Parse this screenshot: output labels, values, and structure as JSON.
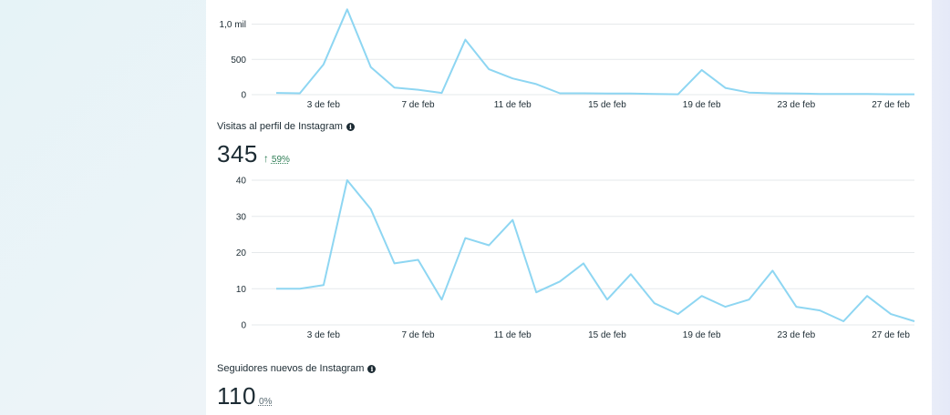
{
  "metrics": [
    {
      "label": "",
      "value": "",
      "chart_data": {
        "type": "line",
        "x": [
          1,
          2,
          3,
          4,
          5,
          6,
          7,
          8,
          9,
          10,
          11,
          12,
          13,
          14,
          15,
          16,
          17,
          18,
          19,
          20,
          21,
          22,
          23,
          24,
          25,
          26,
          27,
          28
        ],
        "values": [
          25,
          20,
          430,
          1210,
          390,
          100,
          70,
          25,
          780,
          360,
          230,
          150,
          20,
          20,
          15,
          15,
          10,
          5,
          350,
          95,
          30,
          20,
          15,
          10,
          10,
          10,
          5,
          5
        ],
        "ylim": [
          0,
          1250
        ],
        "yticks": [
          0,
          500,
          1000
        ],
        "ytick_labels": [
          "0",
          "500",
          "1,0 mil"
        ],
        "xticks": [
          3,
          7,
          11,
          15,
          19,
          23,
          27
        ],
        "xtick_labels": [
          "3 de feb",
          "7 de feb",
          "11 de feb",
          "15 de feb",
          "19 de feb",
          "23 de feb",
          "27 de feb"
        ],
        "grid": true,
        "line_color": "#8ed6f2"
      }
    },
    {
      "label": "Visitas al perfil de Instagram",
      "value": "345",
      "change": "59%",
      "trend_icon": "arrow-up-icon",
      "trend_color": "#2e7d55",
      "chart_data": {
        "type": "line",
        "x": [
          1,
          2,
          3,
          4,
          5,
          6,
          7,
          8,
          9,
          10,
          11,
          12,
          13,
          14,
          15,
          16,
          17,
          18,
          19,
          20,
          21,
          22,
          23,
          24,
          25,
          26,
          27,
          28
        ],
        "values": [
          10,
          10,
          11,
          40,
          32,
          17,
          18,
          7,
          24,
          22,
          29,
          9,
          12,
          17,
          7,
          14,
          6,
          3,
          8,
          5,
          7,
          15,
          5,
          4,
          1,
          8,
          3,
          1
        ],
        "ylim": [
          0,
          40
        ],
        "yticks": [
          0,
          10,
          20,
          30,
          40
        ],
        "ytick_labels": [
          "0",
          "10",
          "20",
          "30",
          "40"
        ],
        "xticks": [
          3,
          7,
          11,
          15,
          19,
          23,
          27
        ],
        "xtick_labels": [
          "3 de feb",
          "7 de feb",
          "11 de feb",
          "15 de feb",
          "19 de feb",
          "23 de feb",
          "27 de feb"
        ],
        "grid": true,
        "line_color": "#8ed6f2"
      }
    },
    {
      "label": "Seguidores nuevos de Instagram",
      "value": "110",
      "change": "0%"
    }
  ]
}
